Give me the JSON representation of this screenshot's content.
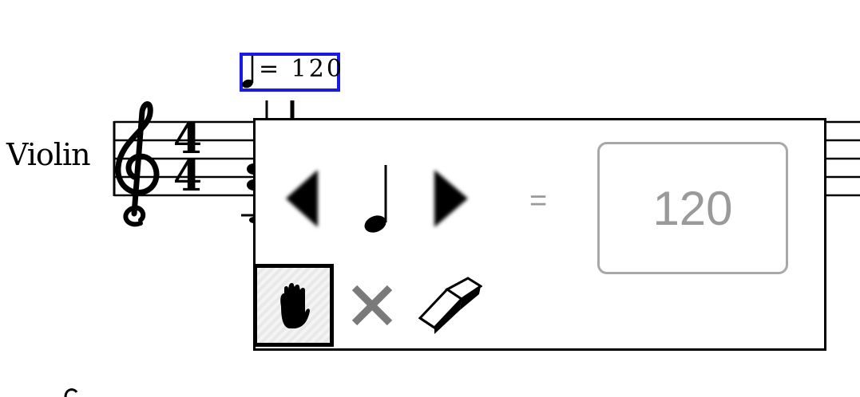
{
  "score": {
    "instrument_name": "Violin",
    "time_signature": {
      "top": "4",
      "bottom": "4"
    }
  },
  "tempo_marking": {
    "text": "= 120",
    "note_icon": "quarter-note-icon"
  },
  "tempo_panel": {
    "equals_sign": "=",
    "bpm_value": "120",
    "prev_icon": "triangle-left-icon",
    "note_icon": "quarter-note-icon",
    "next_icon": "triangle-right-icon",
    "tools": [
      {
        "name": "hand-tool",
        "icon": "hand-icon",
        "selected": true
      },
      {
        "name": "delete-tool",
        "icon": "close-icon",
        "selected": false
      },
      {
        "name": "eraser-tool",
        "icon": "eraser-icon",
        "selected": false
      }
    ]
  },
  "colors": {
    "selection_border": "#1a1ae6",
    "disabled_text": "#9a9a9a",
    "input_border": "#a8a8a8"
  }
}
